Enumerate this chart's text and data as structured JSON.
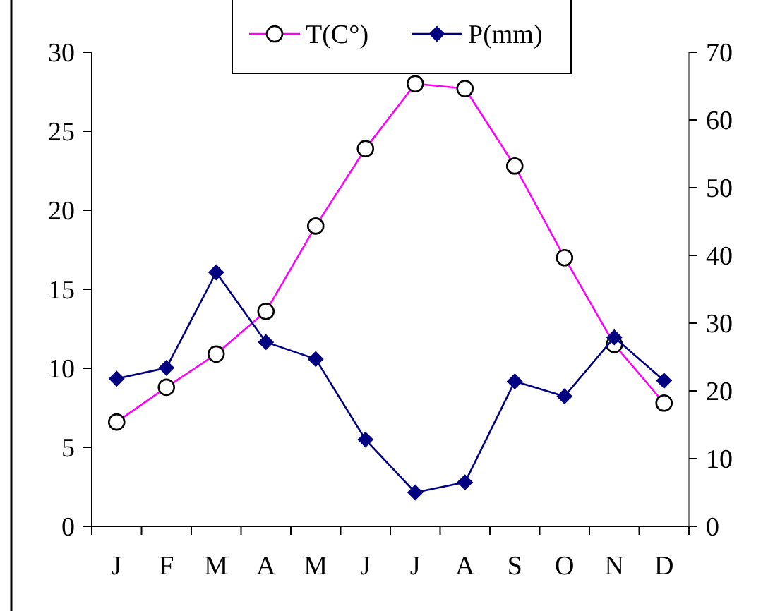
{
  "chart_data": {
    "type": "line",
    "categories": [
      "J",
      "F",
      "M",
      "A",
      "M",
      "J",
      "J",
      "A",
      "S",
      "O",
      "N",
      "D"
    ],
    "series": [
      {
        "name": "T(C°)",
        "color": "#ff00ff",
        "marker": "circle",
        "values": [
          6.6,
          8.8,
          10.9,
          13.6,
          19.0,
          23.9,
          28.0,
          27.7,
          22.8,
          17.0,
          11.5,
          7.8
        ]
      },
      {
        "name": "P(mm)",
        "color": "#000080",
        "marker": "diamond",
        "axis": "y2",
        "values": [
          21.8,
          23.4,
          37.5,
          27.2,
          24.7,
          12.8,
          5.0,
          6.5,
          21.4,
          19.2,
          27.9,
          21.5
        ]
      }
    ],
    "ylim": [
      0,
      30
    ],
    "yticks": [
      0,
      5,
      10,
      15,
      20,
      25,
      30
    ],
    "y2lim": [
      0,
      70
    ],
    "y2ticks": [
      0,
      10,
      20,
      30,
      40,
      50,
      60,
      70
    ],
    "grid": false,
    "legend": "top"
  }
}
